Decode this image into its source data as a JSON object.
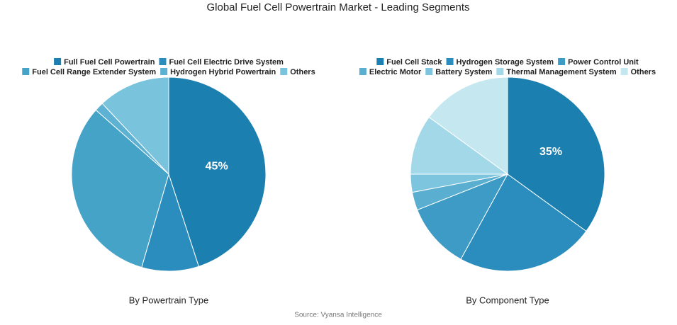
{
  "title": "Global Fuel Cell Powertrain Market - Leading Segments",
  "source": "Source: Vyansa Intelligence",
  "chart_data": [
    {
      "type": "pie",
      "title": "By Powertrain Type",
      "categories": [
        "Full Fuel Cell Powertrain",
        "Fuel Cell Electric Drive System",
        "Fuel Cell Range Extender System",
        "Hydrogen Hybrid Powertrain",
        "Others"
      ],
      "values": [
        45,
        9.5,
        32,
        1.5,
        12
      ],
      "value_labels": [
        "45%",
        null,
        null,
        null,
        null
      ],
      "colors": [
        "#1b7fb0",
        "#2b8dbd",
        "#45a3c8",
        "#5db1d2",
        "#7ac3dc"
      ]
    },
    {
      "type": "pie",
      "title": "By Component Type",
      "categories": [
        "Fuel Cell Stack",
        "Hydrogen Storage System",
        "Power Control Unit",
        "Electric Motor",
        "Battery System",
        "Thermal Management System",
        "Others"
      ],
      "values": [
        35,
        23,
        11,
        3,
        3,
        10,
        15
      ],
      "value_labels": [
        "35%",
        null,
        null,
        null,
        null,
        null,
        null
      ],
      "colors": [
        "#1b7fb0",
        "#2b8dbd",
        "#3d9bc5",
        "#5aafd1",
        "#7dc5df",
        "#a3d8e8",
        "#c5e8f0"
      ]
    }
  ]
}
